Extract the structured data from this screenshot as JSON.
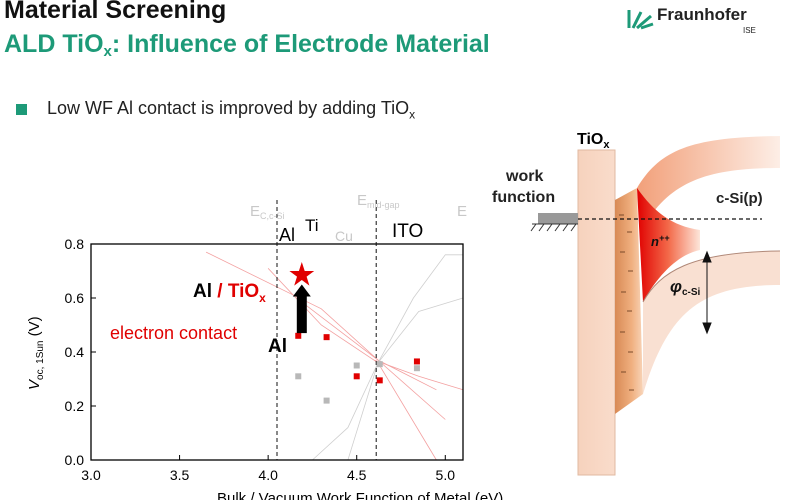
{
  "header": {
    "title": "Material Screening",
    "subtitle_prefix": "ALD TiO",
    "subtitle_sub": "x",
    "subtitle_suffix": ": Influence of Electrode Material"
  },
  "logo": {
    "name": "Fraunhofer",
    "sub": "ISE"
  },
  "bullet": {
    "text": "Low WF Al contact is improved  by adding TiO",
    "sub": "x"
  },
  "chart_data": {
    "type": "scatter",
    "xlabel": "Bulk / Vacuum Work Function of Metal (eV)",
    "ylabel_main": "V",
    "ylabel_sub": "oc, 1Sun",
    "ylabel_unit": "(V)",
    "xlim": [
      3.0,
      5.1
    ],
    "ylim": [
      0.0,
      0.8
    ],
    "xticks": [
      "3.0",
      "3.5",
      "4.0",
      "4.5",
      "5.0"
    ],
    "yticks": [
      "0.0",
      "0.2",
      "0.4",
      "0.6",
      "0.8"
    ],
    "vlines": [
      4.05,
      4.61
    ],
    "top_labels": {
      "ec_main": "E",
      "ec_sub": "C,c-Si",
      "mid_main": "E",
      "mid_sub": "mid-gap",
      "ev_main": "E",
      "al": "Al",
      "ti": "Ti",
      "cu": "Cu",
      "ito": "ITO"
    },
    "annotations": {
      "al_tiox_al": "Al",
      "al_tiox_rest": " / TiO",
      "al_tiox_sub": "x",
      "electron_contact": "electron contact",
      "al_below": "Al"
    },
    "series": [
      {
        "color": "#e00000",
        "points": [
          [
            4.17,
            0.46
          ],
          [
            4.33,
            0.455
          ],
          [
            4.5,
            0.31
          ],
          [
            4.63,
            0.295
          ],
          [
            4.84,
            0.365
          ]
        ]
      },
      {
        "color": "#b8b8b8",
        "points": [
          [
            4.17,
            0.31
          ],
          [
            4.33,
            0.22
          ],
          [
            4.5,
            0.35
          ],
          [
            4.63,
            0.355
          ],
          [
            4.84,
            0.34
          ]
        ]
      }
    ],
    "star": {
      "x": 4.19,
      "y": 0.685,
      "color": "#e00000"
    },
    "arrow": {
      "x": 4.19,
      "from": 0.47,
      "to": 0.65
    }
  },
  "band_diagram": {
    "tiox_main": "TiO",
    "tiox_sub": "x",
    "work_function_1": "work",
    "work_function_2": "function",
    "csi": "c-Si(p)",
    "n_main": "n",
    "n_sup": "++",
    "phi_main": "φ",
    "phi_sub": "c-Si"
  }
}
